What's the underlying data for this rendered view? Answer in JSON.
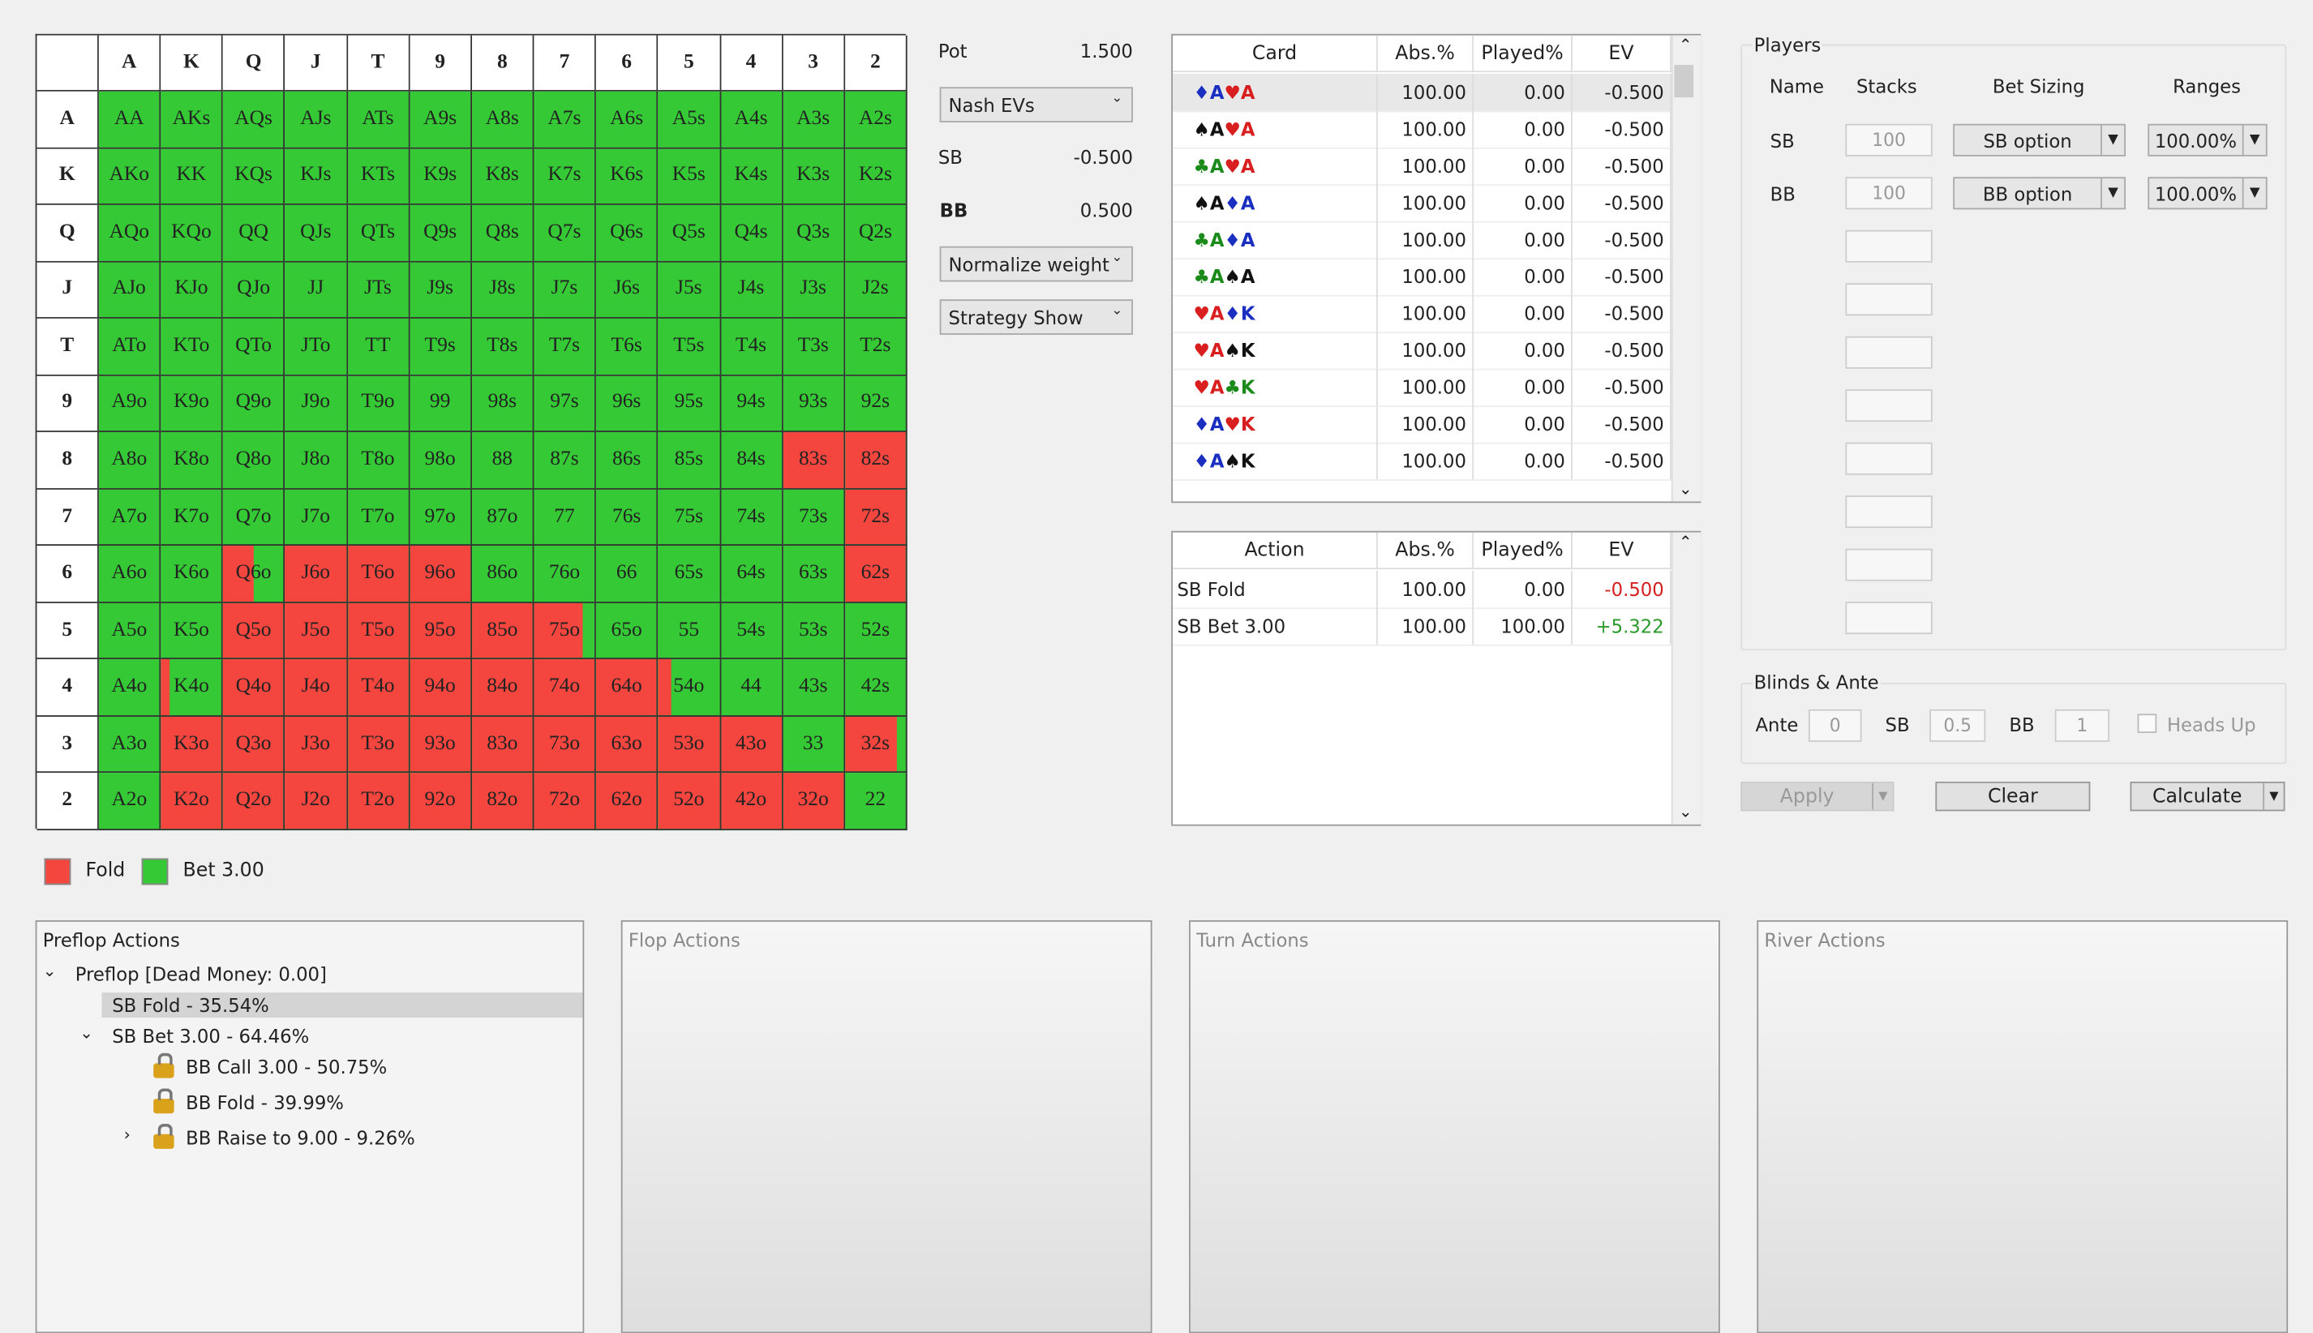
{
  "hand_grid": {
    "ranks": [
      "A",
      "K",
      "Q",
      "J",
      "T",
      "9",
      "8",
      "7",
      "6",
      "5",
      "4",
      "3",
      "2"
    ],
    "cells": [
      [
        "AA",
        "AKs",
        "AQs",
        "AJs",
        "ATs",
        "A9s",
        "A8s",
        "A7s",
        "A6s",
        "A5s",
        "A4s",
        "A3s",
        "A2s"
      ],
      [
        "AKo",
        "KK",
        "KQs",
        "KJs",
        "KTs",
        "K9s",
        "K8s",
        "K7s",
        "K6s",
        "K5s",
        "K4s",
        "K3s",
        "K2s"
      ],
      [
        "AQo",
        "KQo",
        "QQ",
        "QJs",
        "QTs",
        "Q9s",
        "Q8s",
        "Q7s",
        "Q6s",
        "Q5s",
        "Q4s",
        "Q3s",
        "Q2s"
      ],
      [
        "AJo",
        "KJo",
        "QJo",
        "JJ",
        "JTs",
        "J9s",
        "J8s",
        "J7s",
        "J6s",
        "J5s",
        "J4s",
        "J3s",
        "J2s"
      ],
      [
        "ATo",
        "KTo",
        "QTo",
        "JTo",
        "TT",
        "T9s",
        "T8s",
        "T7s",
        "T6s",
        "T5s",
        "T4s",
        "T3s",
        "T2s"
      ],
      [
        "A9o",
        "K9o",
        "Q9o",
        "J9o",
        "T9o",
        "99",
        "98s",
        "97s",
        "96s",
        "95s",
        "94s",
        "93s",
        "92s"
      ],
      [
        "A8o",
        "K8o",
        "Q8o",
        "J8o",
        "T8o",
        "98o",
        "88",
        "87s",
        "86s",
        "85s",
        "84s",
        "83s",
        "82s"
      ],
      [
        "A7o",
        "K7o",
        "Q7o",
        "J7o",
        "T7o",
        "97o",
        "87o",
        "77",
        "76s",
        "75s",
        "74s",
        "73s",
        "72s"
      ],
      [
        "A6o",
        "K6o",
        "Q6o",
        "J6o",
        "T6o",
        "96o",
        "86o",
        "76o",
        "66",
        "65s",
        "64s",
        "63s",
        "62s"
      ],
      [
        "A5o",
        "K5o",
        "Q5o",
        "J5o",
        "T5o",
        "95o",
        "85o",
        "75o",
        "65o",
        "55",
        "54s",
        "53s",
        "52s"
      ],
      [
        "A4o",
        "K4o",
        "Q4o",
        "J4o",
        "T4o",
        "94o",
        "84o",
        "74o",
        "64o",
        "54o",
        "44",
        "43s",
        "42s"
      ],
      [
        "A3o",
        "K3o",
        "Q3o",
        "J3o",
        "T3o",
        "93o",
        "83o",
        "73o",
        "63o",
        "53o",
        "43o",
        "33",
        "32s"
      ],
      [
        "A2o",
        "K2o",
        "Q2o",
        "J2o",
        "T2o",
        "92o",
        "82o",
        "72o",
        "62o",
        "52o",
        "42o",
        "32o",
        "22"
      ]
    ],
    "fold_share": [
      [
        0,
        0,
        0,
        0,
        0,
        0,
        0,
        0,
        0,
        0,
        0,
        0,
        0
      ],
      [
        0,
        0,
        0,
        0,
        0,
        0,
        0,
        0,
        0,
        0,
        0,
        0,
        0
      ],
      [
        0,
        0,
        0,
        0,
        0,
        0,
        0,
        0,
        0,
        0,
        0,
        0,
        0
      ],
      [
        0,
        0,
        0,
        0,
        0,
        0,
        0,
        0,
        0,
        0,
        0,
        0,
        0
      ],
      [
        0,
        0,
        0,
        0,
        0,
        0,
        0,
        0,
        0,
        0,
        0,
        0,
        0
      ],
      [
        0,
        0,
        0,
        0,
        0,
        0,
        0,
        0,
        0,
        0,
        0,
        0,
        0
      ],
      [
        0,
        0,
        0,
        0,
        0,
        0,
        0,
        0,
        0,
        0,
        0,
        1,
        1
      ],
      [
        0,
        0,
        0,
        0,
        0,
        0,
        0,
        0,
        0,
        0,
        0,
        0,
        1
      ],
      [
        0,
        0,
        0.5,
        1,
        1,
        1,
        0,
        0,
        0,
        0,
        0,
        0,
        1
      ],
      [
        0,
        0,
        1,
        1,
        1,
        1,
        1,
        0.8,
        0,
        0,
        0,
        0,
        0
      ],
      [
        0,
        0.15,
        1,
        1,
        1,
        1,
        1,
        1,
        1,
        0.2,
        0,
        0,
        0
      ],
      [
        0,
        1,
        1,
        1,
        1,
        1,
        1,
        1,
        1,
        1,
        1,
        0,
        0.85
      ],
      [
        0,
        1,
        1,
        1,
        1,
        1,
        1,
        1,
        1,
        1,
        1,
        1,
        0
      ]
    ],
    "fold_color": "#f4463f",
    "bet_color": "#35c935"
  },
  "legend": [
    "Fold",
    "Bet 3.00"
  ],
  "summary": {
    "pot_label": "Pot",
    "pot": "1.500",
    "ev_mode": "Nash EVs",
    "sb_label": "SB",
    "sb": "-0.500",
    "bb_label": "BB",
    "bb": "0.500",
    "weight_mode": "Normalize weight",
    "strategy_mode": "Strategy Show"
  },
  "card_table": {
    "columns": [
      "Card",
      "Abs.%",
      "Played%",
      "EV"
    ],
    "suit_colors": {
      "♦": "#1a2fc0",
      "♥": "#d81e1e",
      "♠": "#111111",
      "♣": "#1a8a1a"
    },
    "rows": [
      [
        "♦A ♥A",
        "100.00",
        "0.00",
        "-0.500"
      ],
      [
        "♠A ♥A",
        "100.00",
        "0.00",
        "-0.500"
      ],
      [
        "♣A ♥A",
        "100.00",
        "0.00",
        "-0.500"
      ],
      [
        "♠A ♦A",
        "100.00",
        "0.00",
        "-0.500"
      ],
      [
        "♣A ♦A",
        "100.00",
        "0.00",
        "-0.500"
      ],
      [
        "♣A ♠A",
        "100.00",
        "0.00",
        "-0.500"
      ],
      [
        "♥A ♦K",
        "100.00",
        "0.00",
        "-0.500"
      ],
      [
        "♥A ♠K",
        "100.00",
        "0.00",
        "-0.500"
      ],
      [
        "♥A ♣K",
        "100.00",
        "0.00",
        "-0.500"
      ],
      [
        "♦A ♥K",
        "100.00",
        "0.00",
        "-0.500"
      ],
      [
        "♦A ♠K",
        "100.00",
        "0.00",
        "-0.500"
      ]
    ]
  },
  "action_table": {
    "columns": [
      "Action",
      "Abs.%",
      "Played%",
      "EV"
    ],
    "rows": [
      {
        "cells": [
          "SB Fold",
          "100.00",
          "0.00",
          "-0.500"
        ],
        "ev_color": "#d42020"
      },
      {
        "cells": [
          "SB Bet 3.00",
          "100.00",
          "100.00",
          "+5.322"
        ],
        "ev_color": "#2a9a2a"
      }
    ]
  },
  "players": {
    "title": "Players",
    "columns": [
      "Name",
      "Stacks",
      "Bet Sizing",
      "Ranges"
    ],
    "rows": [
      [
        "SB",
        "100",
        "SB option",
        "100.00%"
      ],
      [
        "BB",
        "100",
        "BB option",
        "100.00%"
      ]
    ]
  },
  "blinds": {
    "title": "Blinds & Ante",
    "ante_label": "Ante",
    "ante": "0",
    "sb_label": "SB",
    "sb": "0.5",
    "bb_label": "BB",
    "bb": "1",
    "heads_up": "Heads Up"
  },
  "buttons": [
    "Apply",
    "Clear",
    "Calculate"
  ],
  "panels": {
    "preflop": {
      "title": "Preflop Actions",
      "tree": [
        {
          "label": "Preflop [Dead Money: 0.00]",
          "children": [
            {
              "label": "SB Fold - 35.54%",
              "selected": true
            },
            {
              "label": "SB Bet 3.00 - 64.46%",
              "children": [
                {
                  "label": "BB Call 3.00 - 50.75%"
                },
                {
                  "label": "BB Fold - 39.99%"
                },
                {
                  "label": "BB Raise to 9.00 - 9.26%",
                  "collapsed": true
                }
              ]
            }
          ]
        }
      ]
    },
    "flop": "Flop Actions",
    "turn": "Turn Actions",
    "river": "River Actions"
  }
}
